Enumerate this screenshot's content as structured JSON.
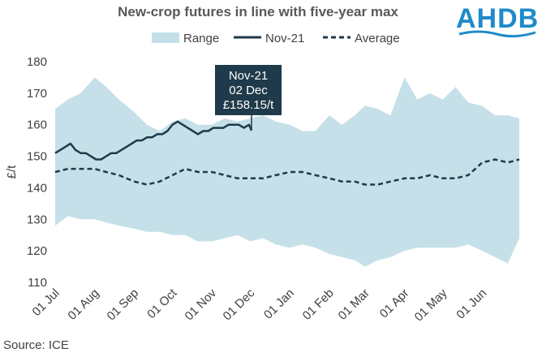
{
  "header": {
    "title": "New-crop futures in line with five-year max",
    "logo_text": "AHDB"
  },
  "footer": {
    "source": "Source: ICE"
  },
  "colors": {
    "range": "#c5e0e8",
    "nov21": "#1f3a4a",
    "average": "#1f3a4a",
    "callout_bg": "#1f3a4a",
    "logo": "#1f8ac9"
  },
  "callout": {
    "lines": [
      "Nov-21",
      "02 Dec",
      "£158.15/t"
    ]
  },
  "chart_data": {
    "type": "line",
    "title": "New-crop futures in line with five-year max",
    "ylabel": "£/t",
    "xlabel": "",
    "ylim": [
      110,
      180
    ],
    "yticks": [
      110,
      120,
      130,
      140,
      150,
      160,
      170,
      180
    ],
    "x_tick_labels": [
      "01 Jul",
      "01 Aug",
      "01 Sep",
      "01 Oct",
      "01 Nov",
      "01 Dec",
      "01 Jan",
      "01 Feb",
      "01 Mar",
      "01 Apr",
      "01 May",
      "01 Jun"
    ],
    "x_tick_days": [
      0,
      31,
      62,
      92,
      123,
      153,
      184,
      215,
      243,
      274,
      304,
      335
    ],
    "x_max_day": 364,
    "grid": false,
    "legend": {
      "position": "top",
      "entries": [
        "Range",
        "Nov-21",
        "Average"
      ]
    },
    "series": [
      {
        "name": "Range",
        "kind": "band",
        "x": [
          0,
          10,
          20,
          31,
          40,
          50,
          62,
          72,
          82,
          92,
          102,
          112,
          123,
          133,
          143,
          153,
          163,
          173,
          184,
          194,
          204,
          215,
          225,
          235,
          243,
          253,
          263,
          274,
          284,
          294,
          304,
          314,
          324,
          335,
          345,
          355,
          364
        ],
        "upper": [
          165,
          168,
          170,
          175,
          172,
          168,
          164,
          160,
          158,
          161,
          162,
          160,
          160,
          162,
          161,
          162,
          163,
          161,
          160,
          158,
          158,
          163,
          160,
          163,
          166,
          165,
          163,
          175,
          168,
          170,
          168,
          172,
          167,
          166,
          163,
          163,
          162
        ],
        "lower": [
          128,
          131,
          130,
          130,
          129,
          128,
          127,
          126,
          126,
          125,
          125,
          123,
          123,
          124,
          125,
          123,
          124,
          122,
          121,
          122,
          121,
          119,
          118,
          117,
          115,
          117,
          118,
          120,
          121,
          121,
          121,
          121,
          122,
          120,
          118,
          116,
          124
        ]
      },
      {
        "name": "Nov-21",
        "kind": "line",
        "style": "solid",
        "x": [
          0,
          4,
          8,
          12,
          16,
          20,
          24,
          28,
          32,
          36,
          40,
          44,
          48,
          52,
          56,
          60,
          64,
          68,
          72,
          76,
          80,
          84,
          88,
          92,
          96,
          100,
          104,
          108,
          112,
          116,
          120,
          124,
          128,
          132,
          136,
          140,
          144,
          148,
          152,
          154
        ],
        "values": [
          151,
          152,
          153,
          154,
          152,
          151,
          151,
          150,
          149,
          149,
          150,
          151,
          151,
          152,
          153,
          154,
          155,
          155,
          156,
          156,
          157,
          157,
          158,
          160,
          161,
          160,
          159,
          158,
          157,
          158,
          158,
          159,
          159,
          159,
          160,
          160,
          160,
          159,
          160,
          158.15
        ]
      },
      {
        "name": "Average",
        "kind": "line",
        "style": "dashed",
        "x": [
          0,
          10,
          20,
          31,
          40,
          50,
          62,
          72,
          82,
          92,
          102,
          112,
          123,
          133,
          143,
          153,
          163,
          173,
          184,
          194,
          204,
          215,
          225,
          235,
          243,
          253,
          263,
          274,
          284,
          294,
          304,
          314,
          324,
          335,
          345,
          355,
          364
        ],
        "values": [
          145,
          146,
          146,
          146,
          145,
          144,
          142,
          141,
          142,
          144,
          146,
          145,
          145,
          144,
          143,
          143,
          143,
          144,
          145,
          145,
          144,
          143,
          142,
          142,
          141,
          141,
          142,
          143,
          143,
          144,
          143,
          143,
          144,
          148,
          149,
          148,
          149
        ]
      }
    ]
  }
}
